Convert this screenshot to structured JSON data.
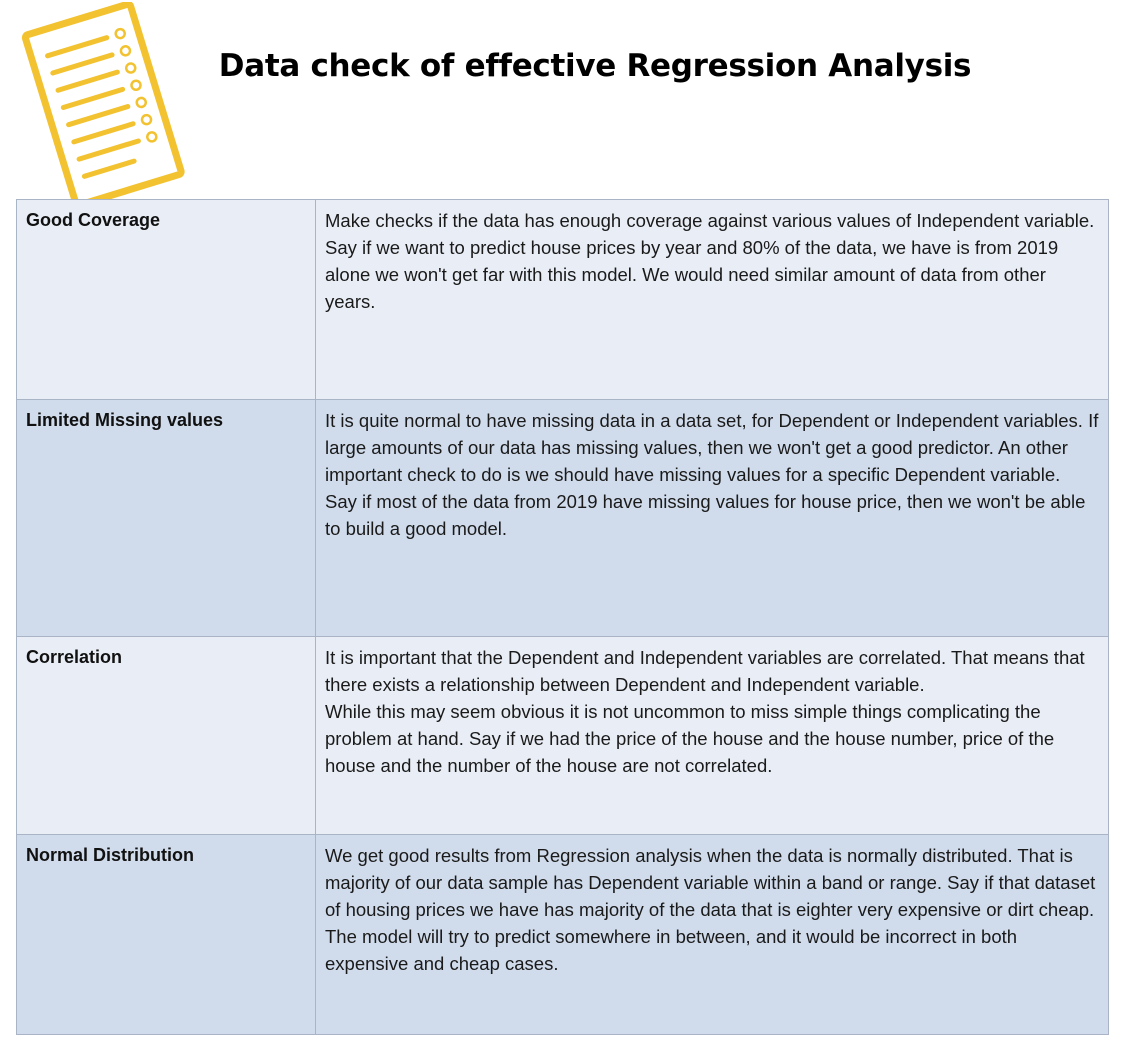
{
  "title": "Data check of effective Regression Analysis",
  "icon": {
    "name": "checklist-icon",
    "color": "#f2c230"
  },
  "colors": {
    "row_light": "#e9eef6",
    "row_dark": "#d0dcec",
    "border": "#a9b4c6"
  },
  "rows": [
    {
      "criterion": "Good Coverage",
      "paragraphs": [
        "Make checks if the data has enough coverage against various values of Independent variable.",
        "Say if we want to predict house prices by year and 80% of the data, we have is from 2019 alone we won't get far with this model. We would need similar amount of data from other years."
      ]
    },
    {
      "criterion": "Limited Missing values",
      "paragraphs": [
        "It is quite normal to have missing data in a data set, for Dependent or Independent variables. If large amounts of our data has missing values, then we won't get a good predictor. An other important check to do is we should have missing values for a specific Dependent variable.",
        "Say if most of the data from 2019 have missing values for house price, then we won't be able to build a good model."
      ]
    },
    {
      "criterion": "Correlation",
      "paragraphs": [
        "It is important that the Dependent and Independent variables are correlated. That means that there exists a relationship between Dependent and Independent variable.",
        "While this may seem obvious it is not uncommon to miss simple things complicating the problem at hand. Say if we had the price of the house and the house number, price of the house and the number of the house are not correlated."
      ]
    },
    {
      "criterion": "Normal Distribution",
      "paragraphs": [
        "We get good results from Regression analysis when the data is normally distributed. That is majority of our data sample has Dependent variable within a band or range. Say if that dataset of housing prices we have has majority of the data that is eighter very expensive or dirt cheap. The model will try to predict somewhere in between, and it would be incorrect in both expensive and cheap cases."
      ]
    }
  ]
}
